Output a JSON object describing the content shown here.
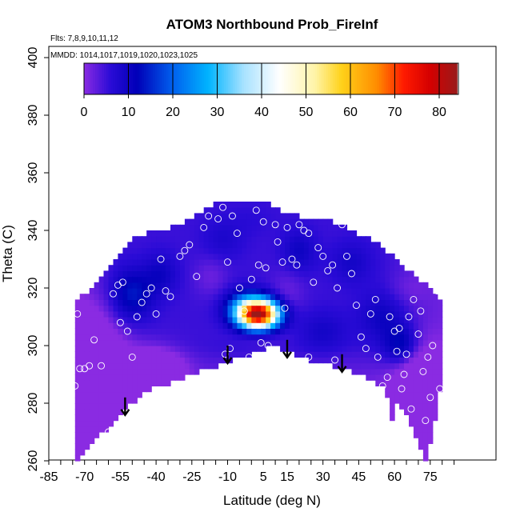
{
  "chart_data": {
    "type": "heatmap",
    "title": "ATOM3 Northbound Prob_FireInf",
    "annotations": {
      "flights": "Flts: 7,8,9,10,11,12",
      "dates": "MMDD: 1014,1017,1019,1020,1023,1025"
    },
    "xlabel": "Latitude (deg N)",
    "ylabel": "Theta (C)",
    "xlim": [
      -85,
      87
    ],
    "ylim": [
      260,
      403
    ],
    "x_ticks": [
      -85,
      -70,
      -55,
      -40,
      -25,
      -10,
      5,
      15,
      30,
      45,
      60,
      75
    ],
    "x_tick_labels": [
      "-85",
      "-70",
      "-55",
      "-40",
      "-25",
      "-10",
      "5",
      "15",
      "30",
      "45",
      "60",
      "75"
    ],
    "y_ticks": [
      260,
      280,
      300,
      320,
      340,
      360,
      380,
      400
    ],
    "y_tick_labels": [
      "260",
      "280",
      "300",
      "320",
      "340",
      "360",
      "380",
      "400"
    ],
    "colorbar": {
      "range": [
        0,
        84
      ],
      "ticks": [
        0,
        10,
        20,
        30,
        40,
        50,
        60,
        70,
        80
      ],
      "tick_labels": [
        "0",
        "10",
        "20",
        "30",
        "40",
        "50",
        "60",
        "70",
        "80"
      ],
      "stops": [
        {
          "v": 0,
          "c": "#8a2be2"
        },
        {
          "v": 6,
          "c": "#2a0bd6"
        },
        {
          "v": 12,
          "c": "#0000b8"
        },
        {
          "v": 20,
          "c": "#0060ee"
        },
        {
          "v": 28,
          "c": "#00b4ff"
        },
        {
          "v": 36,
          "c": "#a8e2ff"
        },
        {
          "v": 44,
          "c": "#ffffff"
        },
        {
          "v": 52,
          "c": "#fff4a8"
        },
        {
          "v": 58,
          "c": "#ffd21a"
        },
        {
          "v": 66,
          "c": "#ff8c00"
        },
        {
          "v": 72,
          "c": "#ff1a00"
        },
        {
          "v": 78,
          "c": "#d40000"
        },
        {
          "v": 84,
          "c": "#9a1a1a"
        }
      ]
    },
    "envelope": {
      "lower": [
        [
          -73,
          261
        ],
        [
          -69,
          264
        ],
        [
          -62,
          270
        ],
        [
          -55,
          276
        ],
        [
          -49,
          281
        ],
        [
          -42,
          285.5
        ],
        [
          -34,
          287
        ],
        [
          -25,
          290
        ],
        [
          -15,
          293
        ],
        [
          -5,
          296
        ],
        [
          5,
          298.5
        ],
        [
          10,
          299.8
        ],
        [
          15,
          298
        ],
        [
          25,
          295
        ],
        [
          35,
          293
        ],
        [
          45,
          290.5
        ],
        [
          55,
          286
        ],
        [
          58,
          280
        ],
        [
          59,
          275
        ],
        [
          60,
          281
        ],
        [
          63,
          278
        ],
        [
          66,
          275
        ],
        [
          70,
          267
        ],
        [
          73,
          261
        ],
        [
          76,
          268
        ],
        [
          79,
          285
        ]
      ],
      "upper": [
        [
          -82,
          308
        ],
        [
          -78,
          312
        ],
        [
          -70,
          317
        ],
        [
          -62,
          323
        ],
        [
          -55,
          332
        ],
        [
          -50,
          337
        ],
        [
          -40,
          339
        ],
        [
          -30,
          341
        ],
        [
          -22,
          345
        ],
        [
          -15,
          349
        ],
        [
          -5,
          350
        ],
        [
          5,
          349
        ],
        [
          12,
          346
        ],
        [
          20,
          344
        ],
        [
          30,
          343
        ],
        [
          40,
          340
        ],
        [
          50,
          336
        ],
        [
          58,
          331
        ],
        [
          65,
          326
        ],
        [
          72,
          321
        ],
        [
          79,
          315
        ],
        [
          81,
          305
        ],
        [
          80,
          292
        ]
      ]
    },
    "blobs": [
      {
        "lat": 3,
        "theta": 311,
        "value": 82,
        "sx": 6,
        "sy": 3.5
      },
      {
        "lat": -3,
        "theta": 314,
        "value": 16,
        "sx": 6,
        "sy": 4
      },
      {
        "lat": 4,
        "theta": 304,
        "value": 2,
        "sx": 7,
        "sy": 3.5
      },
      {
        "lat": 15,
        "theta": 318,
        "value": 2,
        "sx": 5,
        "sy": 6
      },
      {
        "lat": -17,
        "theta": 324,
        "value": 2,
        "sx": 5,
        "sy": 5
      },
      {
        "lat": -12,
        "theta": 337,
        "value": 8,
        "sx": 6,
        "sy": 5
      },
      {
        "lat": 0,
        "theta": 344,
        "value": 6,
        "sx": 7,
        "sy": 4
      },
      {
        "lat": -50,
        "theta": 318,
        "value": 14,
        "sx": 6,
        "sy": 6
      },
      {
        "lat": -38,
        "theta": 325,
        "value": 10,
        "sx": 5,
        "sy": 5
      },
      {
        "lat": 20,
        "theta": 333,
        "value": 10,
        "sx": 5,
        "sy": 5
      },
      {
        "lat": 42,
        "theta": 329,
        "value": 9,
        "sx": 6,
        "sy": 5
      },
      {
        "lat": 55,
        "theta": 310,
        "value": 10,
        "sx": 7,
        "sy": 6
      },
      {
        "lat": 63,
        "theta": 300,
        "value": 14,
        "sx": 5,
        "sy": 5
      },
      {
        "lat": 30,
        "theta": 305,
        "value": 9,
        "sx": 7,
        "sy": 5
      },
      {
        "lat": -72,
        "theta": 296,
        "value": -8,
        "sx": 10,
        "sy": 12
      },
      {
        "lat": -60,
        "theta": 285,
        "value": -8,
        "sx": 10,
        "sy": 10
      },
      {
        "lat": -40,
        "theta": 292,
        "value": -6,
        "sx": 8,
        "sy": 5
      },
      {
        "lat": 72,
        "theta": 285,
        "value": -6,
        "sx": 8,
        "sy": 10
      },
      {
        "lat": 66,
        "theta": 320,
        "value": 3,
        "sx": 6,
        "sy": 4
      },
      {
        "lat": 0,
        "theta": 299,
        "value": 6,
        "sx": 10,
        "sy": 2.5
      }
    ],
    "samples": [
      [
        -73,
        311
      ],
      [
        -74,
        286
      ],
      [
        -72,
        292
      ],
      [
        -70,
        292
      ],
      [
        -68,
        293
      ],
      [
        -66,
        302
      ],
      [
        -63,
        293
      ],
      [
        -60,
        270
      ],
      [
        -58,
        318
      ],
      [
        -56,
        321
      ],
      [
        -55,
        308
      ],
      [
        -54,
        322
      ],
      [
        -52,
        305
      ],
      [
        -50,
        296
      ],
      [
        -48,
        310
      ],
      [
        -46,
        315
      ],
      [
        -44,
        318
      ],
      [
        -42,
        320
      ],
      [
        -40,
        311
      ],
      [
        -38,
        330
      ],
      [
        -36,
        319
      ],
      [
        -34,
        317
      ],
      [
        -30,
        331
      ],
      [
        -28,
        333
      ],
      [
        -26,
        335
      ],
      [
        -23,
        324
      ],
      [
        -20,
        341
      ],
      [
        -18,
        345
      ],
      [
        -14,
        344
      ],
      [
        -12,
        348
      ],
      [
        -10,
        329
      ],
      [
        -8,
        345
      ],
      [
        -6,
        339
      ],
      [
        -5,
        320
      ],
      [
        -3,
        312
      ],
      [
        0,
        323
      ],
      [
        2,
        347
      ],
      [
        3,
        328
      ],
      [
        5,
        343
      ],
      [
        6,
        327
      ],
      [
        7,
        300
      ],
      [
        10,
        342
      ],
      [
        11,
        336
      ],
      [
        13,
        329
      ],
      [
        14,
        313
      ],
      [
        15,
        341
      ],
      [
        17,
        330
      ],
      [
        19,
        328
      ],
      [
        20,
        342
      ],
      [
        22,
        340
      ],
      [
        24,
        339
      ],
      [
        26,
        322
      ],
      [
        28,
        334
      ],
      [
        30,
        331
      ],
      [
        32,
        326
      ],
      [
        34,
        328
      ],
      [
        36,
        320
      ],
      [
        38,
        342
      ],
      [
        40,
        331
      ],
      [
        42,
        325
      ],
      [
        44,
        314
      ],
      [
        46,
        303
      ],
      [
        48,
        299
      ],
      [
        50,
        311
      ],
      [
        52,
        316
      ],
      [
        53,
        296
      ],
      [
        55,
        286
      ],
      [
        57,
        289
      ],
      [
        58,
        310
      ],
      [
        60,
        305
      ],
      [
        61,
        298
      ],
      [
        62,
        306
      ],
      [
        63,
        285
      ],
      [
        64,
        290
      ],
      [
        65,
        297
      ],
      [
        66,
        310
      ],
      [
        67,
        278
      ],
      [
        68,
        316
      ],
      [
        70,
        304
      ],
      [
        71,
        312
      ],
      [
        72,
        291
      ],
      [
        73,
        274
      ],
      [
        74,
        296
      ],
      [
        75,
        282
      ],
      [
        76,
        300
      ],
      [
        78,
        319
      ],
      [
        79,
        285
      ],
      [
        -9,
        299
      ],
      [
        -11,
        297
      ],
      [
        4,
        301
      ],
      [
        -1,
        296
      ],
      [
        24,
        296
      ],
      [
        35,
        295
      ],
      [
        46,
        288
      ]
    ],
    "arrows": [
      [
        -53,
        282
      ],
      [
        -10,
        300
      ],
      [
        15,
        302
      ],
      [
        38,
        297
      ]
    ]
  }
}
